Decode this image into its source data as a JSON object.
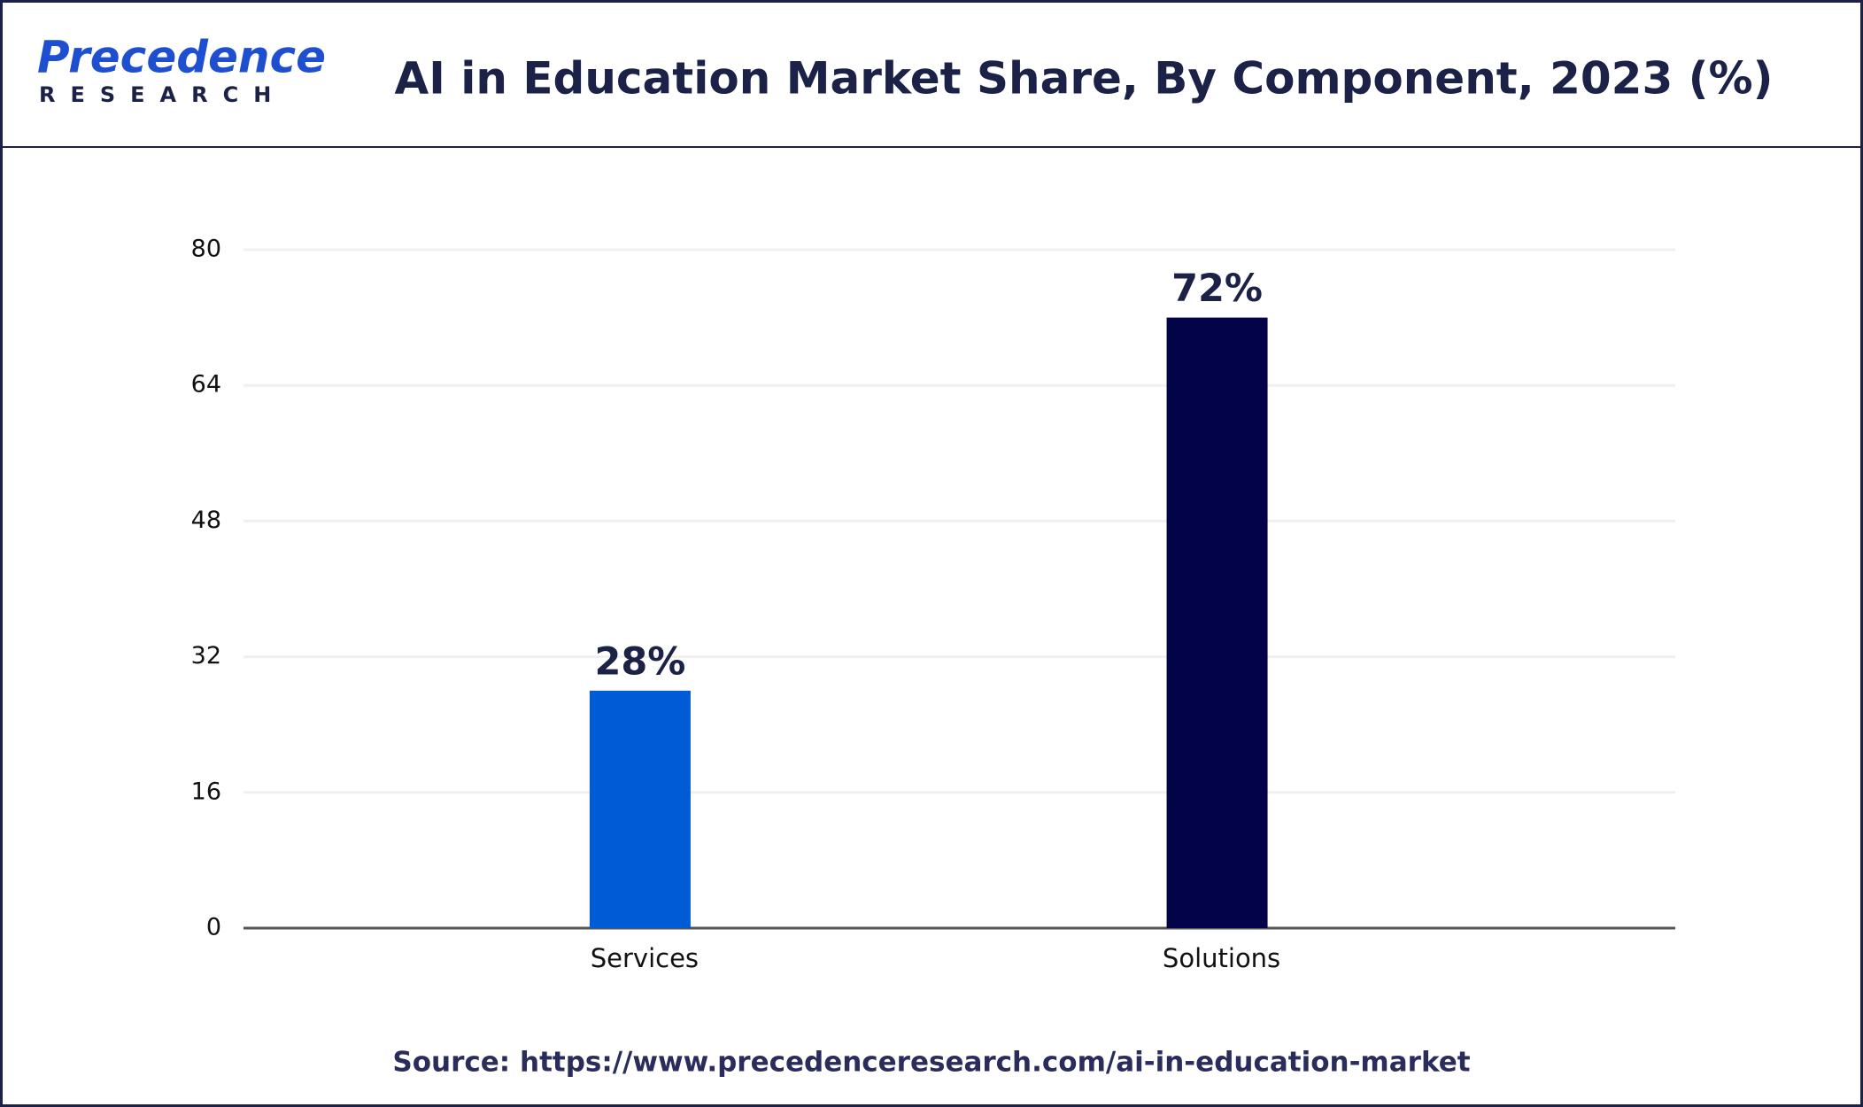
{
  "logo": {
    "name": "Precedence",
    "tagline": "RESEARCH"
  },
  "chart_data": {
    "type": "bar",
    "title": "AI in Education Market Share, By Component, 2023 (%)",
    "categories": [
      "Services",
      "Solutions"
    ],
    "values": [
      28,
      72
    ],
    "value_labels": [
      "28%",
      "72%"
    ],
    "colors": [
      "#005bd6",
      "#03034a"
    ],
    "ylim": [
      0,
      80
    ],
    "yticks": [
      0,
      16,
      32,
      48,
      64,
      80
    ],
    "grid": true,
    "source": "Source: https://www.precedenceresearch.com/ai-in-education-market"
  }
}
